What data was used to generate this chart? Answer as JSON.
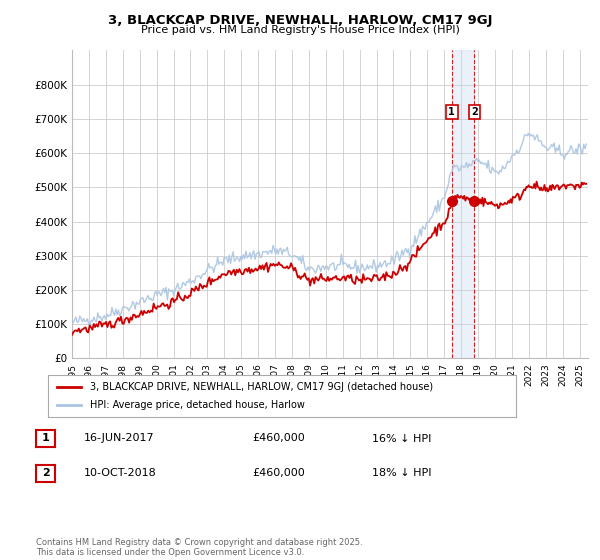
{
  "title": "3, BLACKCAP DRIVE, NEWHALL, HARLOW, CM17 9GJ",
  "subtitle": "Price paid vs. HM Land Registry's House Price Index (HPI)",
  "background_color": "#ffffff",
  "plot_bg_color": "#ffffff",
  "grid_color": "#cccccc",
  "hpi_color": "#aac4e0",
  "price_color": "#cc0000",
  "vline_color": "#cc0000",
  "vspan_color": "#c8d8f0",
  "legend_label_price": "3, BLACKCAP DRIVE, NEWHALL, HARLOW, CM17 9GJ (detached house)",
  "legend_label_hpi": "HPI: Average price, detached house, Harlow",
  "transaction1_date": "16-JUN-2017",
  "transaction1_price": "£460,000",
  "transaction1_note": "16% ↓ HPI",
  "transaction2_date": "10-OCT-2018",
  "transaction2_price": "£460,000",
  "transaction2_note": "18% ↓ HPI",
  "footnote": "Contains HM Land Registry data © Crown copyright and database right 2025.\nThis data is licensed under the Open Government Licence v3.0.",
  "ylim_min": 0,
  "ylim_max": 900000,
  "yticks": [
    0,
    100000,
    200000,
    300000,
    400000,
    500000,
    600000,
    700000,
    800000
  ],
  "ytick_labels": [
    "£0",
    "£100K",
    "£200K",
    "£300K",
    "£400K",
    "£500K",
    "£600K",
    "£700K",
    "£800K"
  ],
  "xmin": 1995,
  "xmax": 2025.5,
  "vline1_x": 2017.45,
  "vline2_x": 2018.78,
  "marker1_x": 2017.45,
  "marker1_y": 460000,
  "marker2_x": 2018.78,
  "marker2_y": 460000
}
